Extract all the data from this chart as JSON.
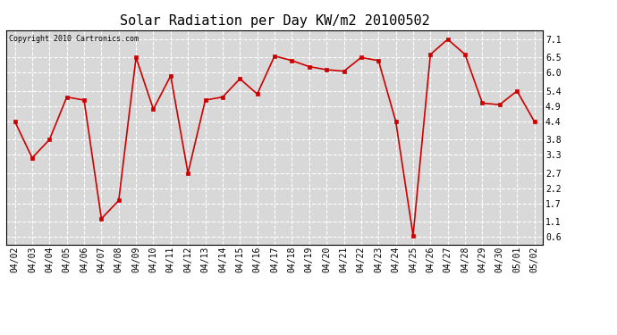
{
  "title": "Solar Radiation per Day KW/m2 20100502",
  "copyright": "Copyright 2010 Cartronics.com",
  "labels": [
    "04/02",
    "04/03",
    "04/04",
    "04/05",
    "04/06",
    "04/07",
    "04/08",
    "04/09",
    "04/10",
    "04/11",
    "04/12",
    "04/13",
    "04/14",
    "04/15",
    "04/16",
    "04/17",
    "04/18",
    "04/19",
    "04/20",
    "04/21",
    "04/22",
    "04/23",
    "04/24",
    "04/25",
    "04/26",
    "04/27",
    "04/28",
    "04/29",
    "04/30",
    "05/01",
    "05/02"
  ],
  "values": [
    4.4,
    3.2,
    3.8,
    5.2,
    5.1,
    1.2,
    1.8,
    6.5,
    4.8,
    5.9,
    2.7,
    5.1,
    5.2,
    5.8,
    5.3,
    6.55,
    6.4,
    6.2,
    6.1,
    6.05,
    6.5,
    6.4,
    4.4,
    0.65,
    6.6,
    7.1,
    6.6,
    5.0,
    4.95,
    5.4,
    4.4
  ],
  "line_color": "#cc0000",
  "marker_color": "#cc0000",
  "bg_color": "#ffffff",
  "plot_bg_color": "#d8d8d8",
  "grid_color": "#ffffff",
  "yticks": [
    0.6,
    1.1,
    1.7,
    2.2,
    2.7,
    3.3,
    3.8,
    4.4,
    4.9,
    5.4,
    6.0,
    6.5,
    7.1
  ],
  "ylim": [
    0.35,
    7.4
  ],
  "title_fontsize": 11,
  "copyright_fontsize": 6,
  "tick_fontsize": 7
}
